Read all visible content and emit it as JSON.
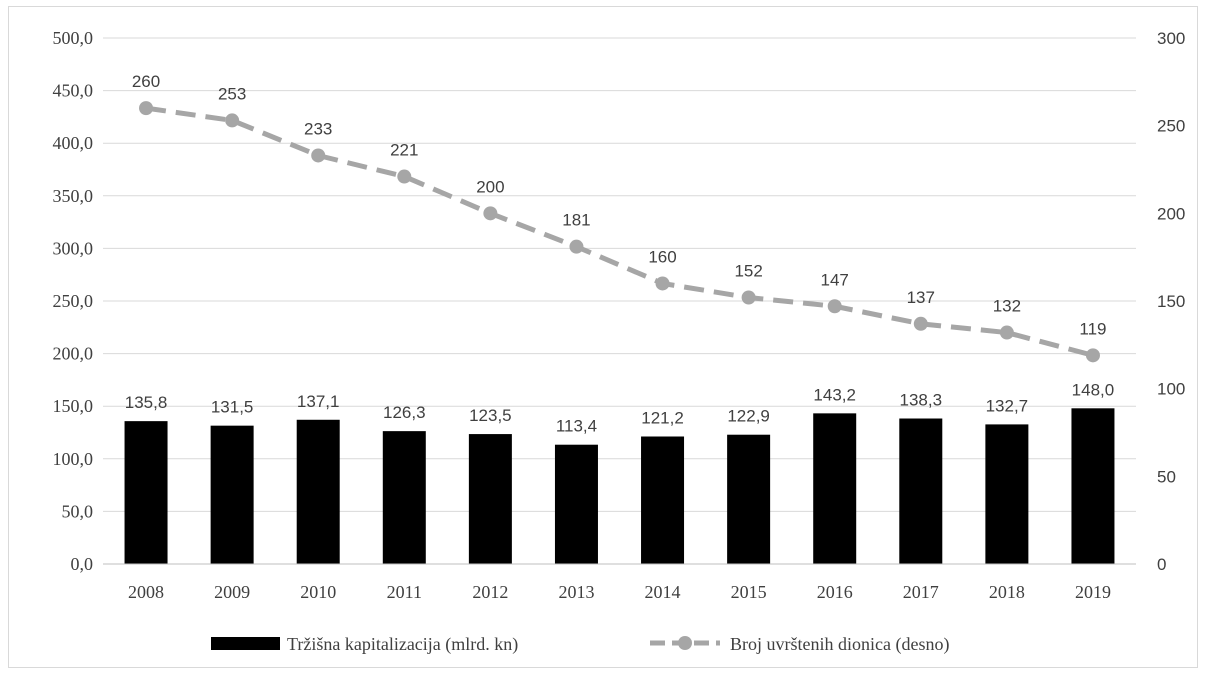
{
  "chart_data": {
    "type": "bar",
    "categories": [
      "2008",
      "2009",
      "2010",
      "2011",
      "2012",
      "2013",
      "2014",
      "2015",
      "2016",
      "2017",
      "2018",
      "2019"
    ],
    "series": [
      {
        "name": "Tržišna kapitalizacija (mlrd. kn)",
        "type": "bar",
        "axis": "left",
        "color": "#000000",
        "values": [
          135.8,
          131.5,
          137.1,
          126.3,
          123.5,
          113.4,
          121.2,
          122.9,
          143.2,
          138.3,
          132.7,
          148.0
        ],
        "labels": [
          "135,8",
          "131,5",
          "137,1",
          "126,3",
          "123,5",
          "113,4",
          "121,2",
          "122,9",
          "143,2",
          "138,3",
          "132,7",
          "148,0"
        ]
      },
      {
        "name": "Broj uvrštenih dionica (desno)",
        "type": "line",
        "axis": "right",
        "style": "dashed",
        "marker": "circle",
        "color": "#a6a6a6",
        "values": [
          260,
          253,
          233,
          221,
          200,
          181,
          160,
          152,
          147,
          137,
          132,
          119
        ],
        "labels": [
          "260",
          "253",
          "233",
          "221",
          "200",
          "181",
          "160",
          "152",
          "147",
          "137",
          "132",
          "119"
        ]
      }
    ],
    "y_left": {
      "min": 0,
      "max": 500,
      "ticks": [
        0,
        50,
        100,
        150,
        200,
        250,
        300,
        350,
        400,
        450,
        500
      ],
      "tick_labels": [
        "0,0",
        "50,0",
        "100,0",
        "150,0",
        "200,0",
        "250,0",
        "300,0",
        "350,0",
        "400,0",
        "450,0",
        "500,0"
      ]
    },
    "y_right": {
      "min": 0,
      "max": 300,
      "ticks": [
        0,
        50,
        100,
        150,
        200,
        250,
        300
      ],
      "tick_labels": [
        "0",
        "50",
        "100",
        "150",
        "200",
        "250",
        "300"
      ]
    },
    "grid": true,
    "gridline_color": "#d9d9d9",
    "legend": {
      "position": "bottom",
      "entries": [
        "Tržišna kapitalizacija (mlrd. kn)",
        "Broj uvrštenih dionica (desno)"
      ]
    }
  }
}
